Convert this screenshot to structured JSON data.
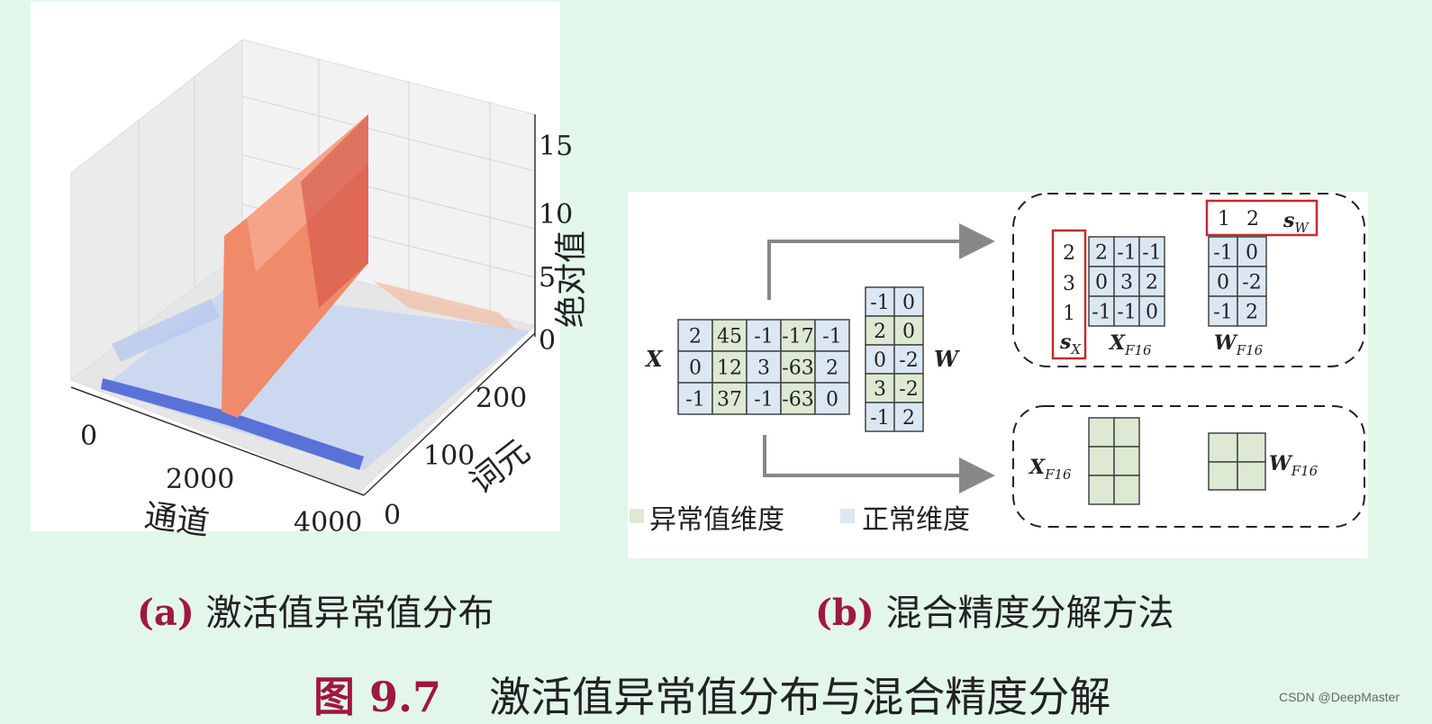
{
  "panel_a": {
    "caption_label": "(a)",
    "caption_text": "激活值异常值分布",
    "axis_channel_label": "通道",
    "axis_token_label": "词元",
    "axis_value_label": "绝对值",
    "channel_ticks": [
      "0",
      "2000",
      "4000"
    ],
    "token_ticks": [
      "0",
      "100",
      "200"
    ],
    "value_ticks": [
      "0",
      "5",
      "10",
      "15"
    ]
  },
  "panel_b": {
    "caption_label": "(b)",
    "caption_text": "混合精度分解方法",
    "matrix_x_label": "X",
    "matrix_x": [
      [
        "2",
        "45",
        "-1",
        "-17",
        "-1"
      ],
      [
        "0",
        "12",
        "3",
        "-63",
        "2"
      ],
      [
        "-1",
        "37",
        "-1",
        "-63",
        "0"
      ]
    ],
    "outlier_columns_x": [
      1,
      3
    ],
    "matrix_w_label": "W",
    "matrix_w": [
      [
        "-1",
        "0"
      ],
      [
        "2",
        "0"
      ],
      [
        "0",
        "-2"
      ],
      [
        "3",
        "-2"
      ],
      [
        "-1",
        "2"
      ]
    ],
    "outlier_rows_w": [
      1,
      3
    ],
    "sx_values": [
      "2",
      "3",
      "1"
    ],
    "sx_label": "s",
    "sx_sub": "X",
    "xf16_matrix": [
      [
        "2",
        "-1",
        "-1"
      ],
      [
        "0",
        "3",
        "2"
      ],
      [
        "-1",
        "-1",
        "0"
      ]
    ],
    "xf16_label": "X",
    "f16_sub": "F16",
    "sw_values": [
      "1",
      "2"
    ],
    "sw_label": "s",
    "sw_sub": "W",
    "wf16_matrix": [
      [
        "-1",
        "0"
      ],
      [
        "0",
        "-2"
      ],
      [
        "-1",
        "2"
      ]
    ],
    "wf16_label": "W",
    "legend_outlier": "异常值维度",
    "legend_normal": "正常维度",
    "colors": {
      "outlier": "#dde9d2",
      "normal": "#dbe7f3",
      "border": "#444444",
      "red": "#c8282d",
      "arrow": "#888888"
    }
  },
  "figure": {
    "number": "图 9.7",
    "title": "激活值异常值分布与混合精度分解"
  },
  "credit": "CSDN @DeepMaster"
}
